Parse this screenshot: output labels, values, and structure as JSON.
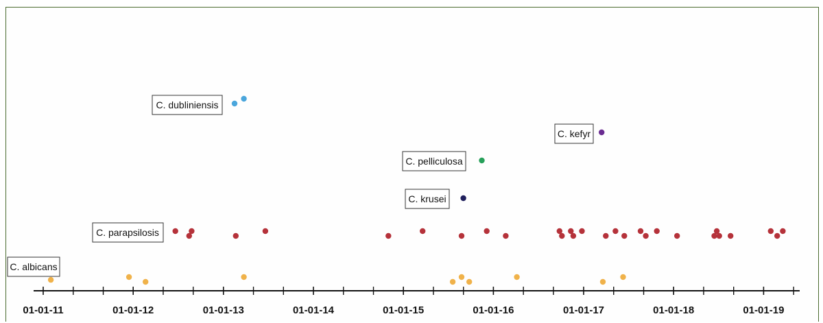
{
  "chart_data": {
    "type": "scatter",
    "title": "",
    "xlabel": "",
    "ylabel": "",
    "x_axis": {
      "kind": "date",
      "xlim": [
        "2011-01-01",
        "2019-09-01"
      ],
      "major_ticks": [
        "2011-01-01",
        "2012-01-01",
        "2013-01-01",
        "2014-01-01",
        "2015-01-01",
        "2016-01-01",
        "2017-01-01",
        "2018-01-01",
        "2019-01-01"
      ],
      "tick_labels": [
        "01-01-11",
        "01-01-12",
        "01-01-13",
        "01-01-14",
        "01-01-15",
        "01-01-16",
        "01-01-17",
        "01-01-18",
        "01-01-19"
      ],
      "minor_ticks_per_year": 2
    },
    "grid": false,
    "legend": "none",
    "series": [
      {
        "name": "C. albicans",
        "color": "#f0b24a",
        "points": [
          {
            "x": "2011-02-01",
            "y": 0.05
          },
          {
            "x": "2011-12-15",
            "y": 0.12
          },
          {
            "x": "2012-02-20",
            "y": 0.0
          },
          {
            "x": "2013-03-25",
            "y": 0.12
          },
          {
            "x": "2015-07-20",
            "y": 0.0
          },
          {
            "x": "2015-08-25",
            "y": 0.12
          },
          {
            "x": "2015-09-25",
            "y": 0.0
          },
          {
            "x": "2016-04-05",
            "y": 0.12
          },
          {
            "x": "2017-03-20",
            "y": 0.0
          },
          {
            "x": "2017-06-10",
            "y": 0.12
          }
        ]
      },
      {
        "name": "C. parapsilosis",
        "color": "#b5323a",
        "points": [
          {
            "x": "2012-06-20",
            "y": 0.12
          },
          {
            "x": "2012-08-15",
            "y": 0.0
          },
          {
            "x": "2012-08-25",
            "y": 0.12
          },
          {
            "x": "2013-02-20",
            "y": 0.0
          },
          {
            "x": "2013-06-20",
            "y": 0.12
          },
          {
            "x": "2014-11-01",
            "y": 0.0
          },
          {
            "x": "2015-03-20",
            "y": 0.12
          },
          {
            "x": "2015-08-25",
            "y": 0.0
          },
          {
            "x": "2015-12-05",
            "y": 0.12
          },
          {
            "x": "2016-02-20",
            "y": 0.0
          },
          {
            "x": "2016-09-25",
            "y": 0.12
          },
          {
            "x": "2016-10-05",
            "y": 0.0
          },
          {
            "x": "2016-11-10",
            "y": 0.12
          },
          {
            "x": "2016-11-20",
            "y": 0.0
          },
          {
            "x": "2016-12-25",
            "y": 0.12
          },
          {
            "x": "2017-04-01",
            "y": 0.0
          },
          {
            "x": "2017-05-10",
            "y": 0.12
          },
          {
            "x": "2017-06-15",
            "y": 0.0
          },
          {
            "x": "2017-08-20",
            "y": 0.12
          },
          {
            "x": "2017-09-10",
            "y": 0.0
          },
          {
            "x": "2017-10-25",
            "y": 0.12
          },
          {
            "x": "2018-01-15",
            "y": 0.0
          },
          {
            "x": "2018-06-15",
            "y": 0.0
          },
          {
            "x": "2018-06-25",
            "y": 0.12
          },
          {
            "x": "2018-07-05",
            "y": 0.0
          },
          {
            "x": "2018-08-20",
            "y": 0.0
          },
          {
            "x": "2019-01-30",
            "y": 0.12
          },
          {
            "x": "2019-02-25",
            "y": 0.0
          },
          {
            "x": "2019-03-20",
            "y": 0.12
          }
        ]
      },
      {
        "name": "C. krusei",
        "color": "#1f1f5c",
        "points": [
          {
            "x": "2015-09-01",
            "y": 0.0
          }
        ]
      },
      {
        "name": "C. pelliculosa",
        "color": "#27a05a",
        "points": [
          {
            "x": "2015-11-15",
            "y": 0.0
          }
        ]
      },
      {
        "name": "C. kefyr",
        "color": "#6a2c91",
        "points": [
          {
            "x": "2017-03-15",
            "y": 0.0
          }
        ]
      },
      {
        "name": "C. dubliniensis",
        "color": "#4aa6dc",
        "points": [
          {
            "x": "2013-02-15",
            "y": 0.0
          },
          {
            "x": "2013-03-25",
            "y": 0.12
          }
        ]
      }
    ]
  }
}
